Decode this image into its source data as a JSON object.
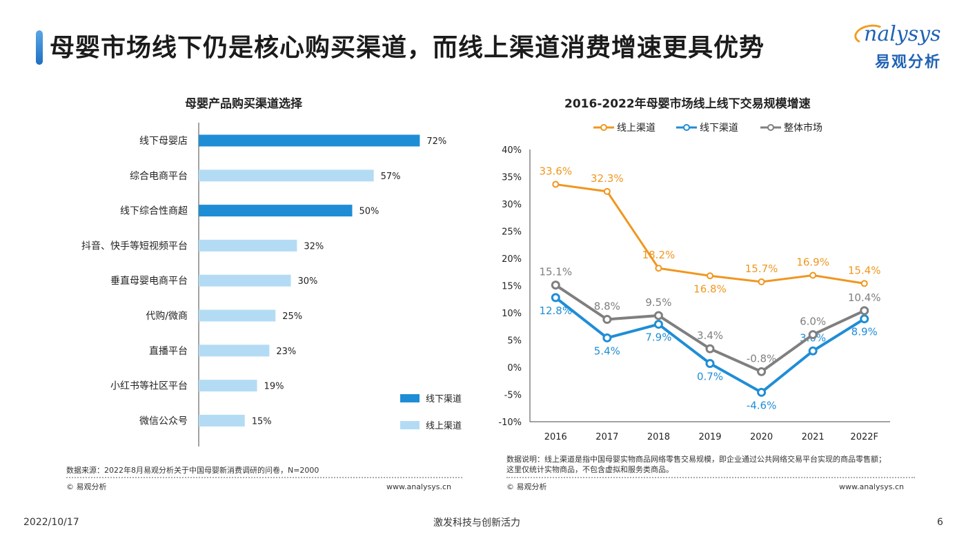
{
  "header": {
    "title": "母婴市场线下仍是核心购买渠道，而线上渠道消费增速更具优势"
  },
  "logo": {
    "en": "nalysys",
    "cn": "易观分析"
  },
  "left": {
    "title": "母婴产品购买渠道选择",
    "source": "数据来源：2022年8月易观分析关于中国母婴新消费调研的问卷，N=2000",
    "copyright": "© 易观分析",
    "url": "www.analysys.cn"
  },
  "right": {
    "title": "2016-2022年母婴市场线上线下交易规模增速",
    "note_line1": "数据说明：线上渠道是指中国母婴实物商品网络零售交易规模，即企业通过公共网络交易平台实现的商品零售额；",
    "note_line2": "这里仅统计实物商品，不包含虚拟和服务类商品。",
    "copyright": "© 易观分析",
    "url": "www.analysys.cn"
  },
  "footer": {
    "date": "2022/10/17",
    "slogan": "激发科技与创新活力",
    "page": "6"
  },
  "colors": {
    "offline_bar": "#1f8dd6",
    "online_bar": "#b3dcf4",
    "online_line": "#f0961e",
    "offline_line": "#1f8dd6",
    "total_line": "#7f7f7f"
  },
  "chart_data": [
    {
      "type": "bar",
      "orientation": "horizontal",
      "title": "母婴产品购买渠道选择",
      "categories": [
        "线下母婴店",
        "综合电商平台",
        "线下综合性商超",
        "抖音、快手等短视频平台",
        "垂直母婴电商平台",
        "代购/微商",
        "直播平台",
        "小红书等社区平台",
        "微信公众号"
      ],
      "values": [
        72,
        57,
        50,
        32,
        30,
        25,
        23,
        19,
        15
      ],
      "value_labels": [
        "72%",
        "57%",
        "50%",
        "32%",
        "30%",
        "25%",
        "23%",
        "19%",
        "15%"
      ],
      "channel": [
        "线下渠道",
        "线上渠道",
        "线下渠道",
        "线上渠道",
        "线上渠道",
        "线上渠道",
        "线上渠道",
        "线上渠道",
        "线上渠道"
      ],
      "legend": [
        "线下渠道",
        "线上渠道"
      ],
      "xlim": [
        0,
        100
      ],
      "legend_position": "bottom-right"
    },
    {
      "type": "line",
      "title": "2016-2022年母婴市场线上线下交易规模增速",
      "x": [
        "2016",
        "2017",
        "2018",
        "2019",
        "2020",
        "2021",
        "2022F"
      ],
      "series": [
        {
          "name": "线上渠道",
          "values": [
            33.6,
            32.3,
            18.2,
            16.8,
            15.7,
            16.9,
            15.4
          ],
          "labels": [
            "33.6%",
            "32.3%",
            "18.2%",
            "16.8%",
            "15.7%",
            "16.9%",
            "15.4%"
          ]
        },
        {
          "name": "线下渠道",
          "values": [
            12.8,
            5.4,
            7.9,
            0.7,
            -4.6,
            3.0,
            8.9
          ],
          "labels": [
            "12.8%",
            "5.4%",
            "7.9%",
            "0.7%",
            "-4.6%",
            "3.0%",
            "8.9%"
          ]
        },
        {
          "name": "整体市场",
          "values": [
            15.1,
            8.8,
            9.5,
            3.4,
            -0.8,
            6.0,
            10.4
          ],
          "labels": [
            "15.1%",
            "8.8%",
            "9.5%",
            "3.4%",
            "-0.8%",
            "6.0%",
            "10.4%"
          ]
        }
      ],
      "ylim": [
        -10,
        40
      ],
      "yticks": [
        "-10%",
        "-5%",
        "0%",
        "5%",
        "10%",
        "15%",
        "20%",
        "25%",
        "30%",
        "35%",
        "40%"
      ],
      "legend_position": "top"
    }
  ]
}
